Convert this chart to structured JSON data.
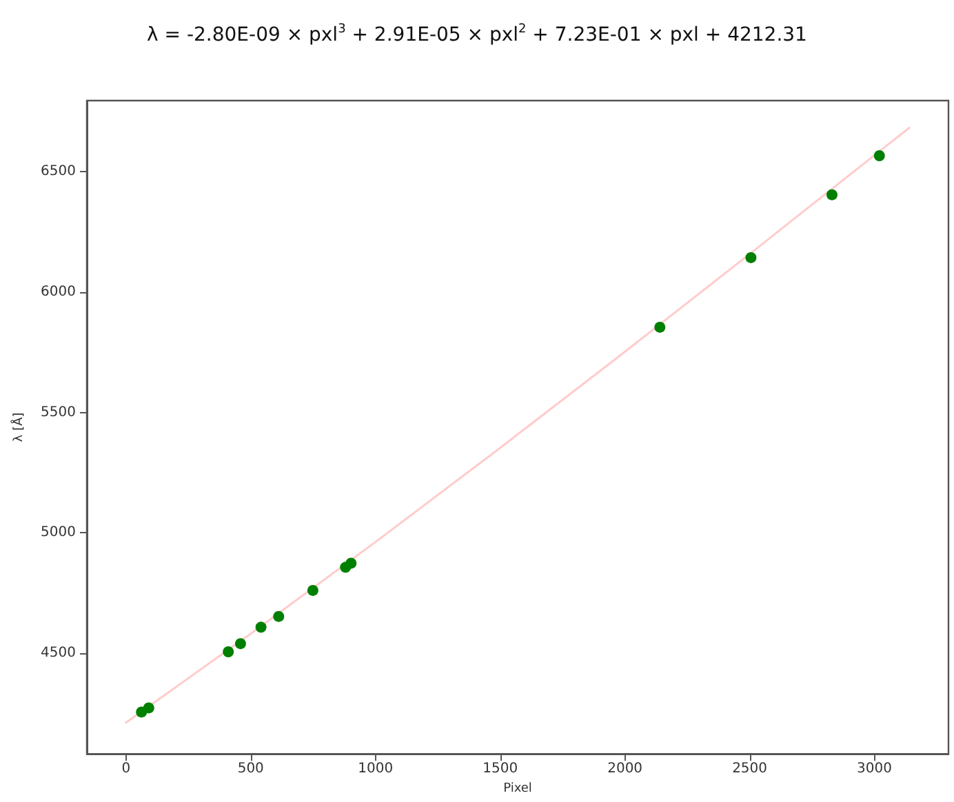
{
  "chart_data": {
    "type": "scatter",
    "title": "λ = -2.80E-09 × pxl$^{3}$ + 2.91E-05 × pxl$^{2}$ + 7.23E-01 × pxl + 4212.31",
    "xlabel": "Pixel",
    "ylabel": "λ [Å]",
    "series": [
      {
        "type": "line",
        "color": "#ffcccc",
        "marker": "none",
        "x": [
          0,
          500,
          1000,
          1500,
          2000,
          2500,
          3000,
          3140
        ],
        "values": [
          4212,
          4581,
          4962,
          5353,
          5752,
          6158,
          6568,
          6682
        ]
      },
      {
        "color": "#008000",
        "marker": "circle",
        "x": [
          62,
          91,
          410,
          459,
          541,
          612,
          749,
          880,
          902,
          2140,
          2505,
          2830,
          3020
        ],
        "values": [
          4256,
          4273,
          4506,
          4540,
          4608,
          4653,
          4761,
          4857,
          4874,
          5854,
          6143,
          6404,
          6566
        ]
      }
    ],
    "xlim": [
      -157,
      3297
    ],
    "xticks": [
      0,
      500,
      1000,
      1500,
      2000,
      2500,
      3000
    ],
    "ylim": [
      4082,
      6795
    ],
    "yticks": [
      4500,
      5000,
      5500,
      6000,
      6500
    ],
    "grid": false
  }
}
